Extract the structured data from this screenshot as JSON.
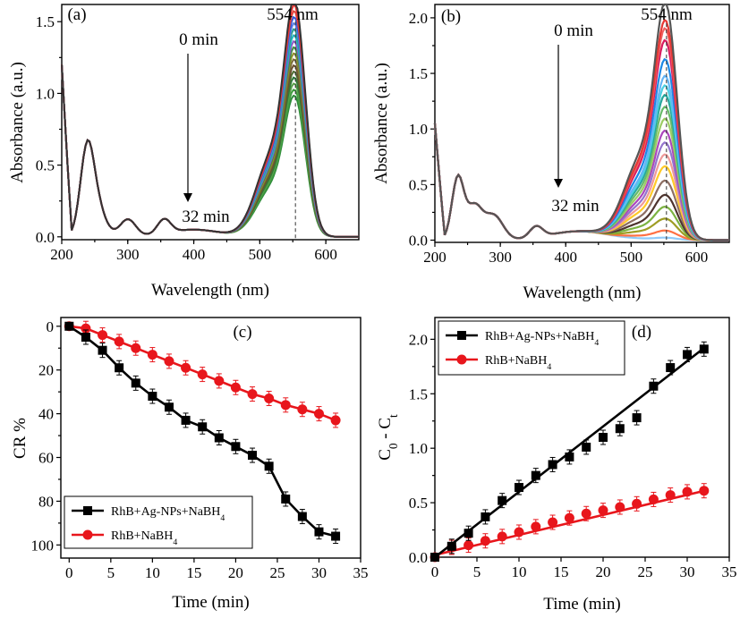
{
  "chart_data": [
    {
      "panel": "(a)",
      "type": "line",
      "xlabel": "Wavelength (nm)",
      "ylabel": "Absorbance (a.u.)",
      "xlim": [
        200,
        650
      ],
      "ylim": [
        -0.02,
        1.62
      ],
      "xticks": [
        200,
        300,
        400,
        500,
        600
      ],
      "yticks": [
        0.0,
        0.5,
        1.0,
        1.5
      ],
      "ytick_labels": [
        "0.0",
        "0.5",
        "1.0",
        "1.5"
      ],
      "peak_label": "554 nm",
      "peak_wavelength": 554,
      "start_label": "0 min",
      "end_label": "32 min",
      "series_count": 17,
      "peak_start": 1.55,
      "peak_end": 0.92,
      "colors": [
        "#333333",
        "#e8312f",
        "#e0453c",
        "#3156d8",
        "#5b7ee8",
        "#2a9d8f",
        "#1fb5c4",
        "#8e55c9",
        "#3e8e41",
        "#8f8f2a",
        "#7a6a3a",
        "#6b4f2d",
        "#4d6b2f",
        "#2f7a3a",
        "#58a04a",
        "#3f9c3f",
        "#2e8b3a"
      ]
    },
    {
      "panel": "(b)",
      "type": "line",
      "xlabel": "Wavelength (nm)",
      "ylabel": "Absorbance (a.u.)",
      "xlim": [
        200,
        650
      ],
      "ylim": [
        -0.02,
        2.12
      ],
      "xticks": [
        200,
        300,
        400,
        500,
        600
      ],
      "yticks": [
        0.0,
        0.5,
        1.0,
        1.5,
        2.0
      ],
      "ytick_labels": [
        "0.0",
        "0.5",
        "1.0",
        "1.5",
        "2.0"
      ],
      "peak_label": "554 nm",
      "peak_wavelength": 554,
      "start_label": "0 min",
      "end_label": "32 min",
      "series_peaks": [
        2.0,
        1.85,
        1.78,
        1.68,
        1.52,
        1.38,
        1.3,
        1.22,
        1.12,
        1.02,
        0.92,
        0.82,
        0.72,
        0.62,
        0.5,
        0.38,
        0.28,
        0.18,
        0.08,
        0.02
      ],
      "colors": [
        "#555555",
        "#e53935",
        "#f06262",
        "#d81b60",
        "#1e88e5",
        "#64b5f6",
        "#4dd0e1",
        "#26a69a",
        "#66bb6a",
        "#9ccc65",
        "#ab47bc",
        "#9575cd",
        "#ef9a9a",
        "#ffca28",
        "#8d6e63",
        "#4e342e",
        "#7cb342",
        "#9e9d24",
        "#ff7043",
        "#90caf9"
      ]
    },
    {
      "panel": "(c)",
      "type": "line",
      "xlabel": "Time (min)",
      "ylabel": "CR %",
      "xlim": [
        -1,
        35
      ],
      "ylim": [
        -4,
        106
      ],
      "y_inverted": true,
      "xticks": [
        0,
        5,
        10,
        15,
        20,
        25,
        30,
        35
      ],
      "yticks": [
        0,
        20,
        40,
        60,
        80,
        100
      ],
      "legend_position": "bottom-left",
      "series": [
        {
          "name": "RhB+Ag-NPs+NaBH",
          "subscript": "4",
          "color": "#000000",
          "marker": "square",
          "x": [
            0,
            2,
            4,
            6,
            8,
            10,
            12,
            14,
            16,
            18,
            20,
            22,
            24,
            26,
            28,
            30,
            32
          ],
          "y": [
            0,
            5,
            11,
            19,
            26,
            32,
            37,
            43,
            46,
            51,
            55,
            59,
            64,
            79,
            87,
            94,
            96
          ]
        },
        {
          "name": "RhB+NaBH",
          "subscript": "4",
          "color": "#e8161c",
          "marker": "circle",
          "x": [
            0,
            2,
            4,
            6,
            8,
            10,
            12,
            14,
            16,
            18,
            20,
            22,
            24,
            26,
            28,
            30,
            32
          ],
          "y": [
            0,
            1,
            4,
            7,
            10,
            13,
            16,
            19,
            22,
            25,
            28,
            31,
            33,
            36,
            38,
            40,
            43
          ]
        }
      ]
    },
    {
      "panel": "(d)",
      "type": "scatter",
      "xlabel": "Time (min)",
      "ylabel": "C0 - Ct",
      "ylabel_parts": [
        "C",
        "0",
        " - C",
        "t"
      ],
      "xlim": [
        0,
        35
      ],
      "ylim": [
        0,
        2.2
      ],
      "xticks": [
        0,
        5,
        10,
        15,
        20,
        25,
        30,
        35
      ],
      "yticks": [
        0.0,
        0.5,
        1.0,
        1.5,
        2.0
      ],
      "ytick_labels": [
        "0.0",
        "0.5",
        "1.0",
        "1.5",
        "2.0"
      ],
      "legend_position": "top-left",
      "series": [
        {
          "name": "RhB+Ag-NPs+NaBH",
          "subscript": "4",
          "color": "#000000",
          "marker": "square",
          "x": [
            0,
            2,
            4,
            6,
            8,
            10,
            12,
            14,
            16,
            18,
            20,
            22,
            24,
            26,
            28,
            30,
            32
          ],
          "y": [
            0.0,
            0.1,
            0.22,
            0.37,
            0.52,
            0.64,
            0.75,
            0.85,
            0.92,
            1.01,
            1.1,
            1.18,
            1.28,
            1.57,
            1.74,
            1.86,
            1.91
          ],
          "fit": [
            0.0,
            0.06
          ]
        },
        {
          "name": "RhB+NaBH",
          "subscript": "4",
          "color": "#e8161c",
          "marker": "circle",
          "x": [
            0,
            2,
            4,
            6,
            8,
            10,
            12,
            14,
            16,
            18,
            20,
            22,
            24,
            26,
            28,
            30,
            32
          ],
          "y": [
            0.0,
            0.09,
            0.11,
            0.15,
            0.19,
            0.23,
            0.28,
            0.32,
            0.36,
            0.4,
            0.43,
            0.46,
            0.49,
            0.53,
            0.57,
            0.6,
            0.61
          ],
          "fit": [
            0.02,
            0.0184
          ]
        }
      ]
    }
  ]
}
